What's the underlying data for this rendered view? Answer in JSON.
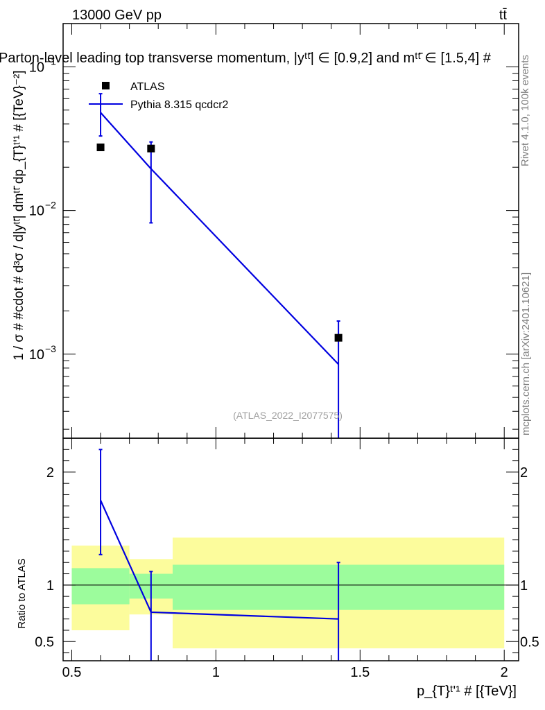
{
  "header": {
    "energy": "13000 GeV pp",
    "process": "tt̄"
  },
  "plot": {
    "title": "Parton-level leading top transverse momentum, |y^{tt̄}| ∈ [0.9,2] and m^{tt̄} ∈ [1.5,4] #",
    "title_display": "Parton-level leading top transverse momentum, |yᵗᵗ̄| ∈ [0.9,2] and mᵗᵗ̄ ∈ [1.5,4] #",
    "ylabel": "1 / σ # #cdot # d³σ / d|yᵗᵗ̄| dmᵗᵗ̄ dp_{T}ᵗ'¹ # [{TeV}⁻²]",
    "ratio_ylabel": "Ratio to ATLAS",
    "xlabel": "p_{T}ᵗ'¹ # [{TeV}]",
    "analysis_tag": "(ATLAS_2022_I2077575)",
    "side_label_top": "Rivet 4.1.0,  100k events",
    "side_label_bottom": "mcplots.cern.ch [arXiv:2401.10621]"
  },
  "chart_data": {
    "type": "line",
    "xlim": [
      0.47,
      2.05
    ],
    "ylim": [
      0.00026,
      0.2
    ],
    "ylog": true,
    "ratio_ylim": [
      0.33,
      2.3
    ],
    "x_ticks": [
      "0.5",
      "1",
      "1.5",
      "2"
    ],
    "x_tick_values": [
      0.5,
      1,
      1.5,
      2
    ],
    "y_ticks": [
      {
        "value": 0.1,
        "base": "10",
        "exp": "−1"
      },
      {
        "value": 0.01,
        "base": "10",
        "exp": "−2"
      },
      {
        "value": 0.001,
        "base": "10",
        "exp": "−3"
      }
    ],
    "ratio_ticks": [
      {
        "value": 0.5,
        "label": "0.5"
      },
      {
        "value": 1,
        "label": "1"
      },
      {
        "value": 2,
        "label": "2"
      }
    ],
    "bin_edges": [
      0.5,
      0.7,
      0.85,
      2.0
    ],
    "series": [
      {
        "name": "ATLAS",
        "kind": "data",
        "color": "#000000",
        "x": [
          0.6,
          0.775,
          1.425
        ],
        "y": [
          0.0275,
          0.027,
          0.0013
        ]
      },
      {
        "name": "Pythia 8.315 qcdcr2",
        "kind": "mc",
        "color": "#0000e0",
        "x": [
          0.6,
          0.775,
          1.425
        ],
        "y": [
          0.048,
          0.0195,
          0.00085
        ],
        "err_up": [
          0.065,
          0.03,
          0.0017
        ],
        "err_down": [
          0.033,
          0.0082,
          0.0001
        ]
      }
    ],
    "ratio": {
      "mc": [
        1.75,
        0.76,
        0.7
      ],
      "mc_err_up": [
        2.2,
        1.12,
        1.2
      ],
      "mc_err_down": [
        1.27,
        0.2,
        0.2
      ],
      "band_inner": [
        [
          0.83,
          1.15
        ],
        [
          0.88,
          1.1
        ],
        [
          0.78,
          1.18
        ]
      ],
      "band_outer": [
        [
          0.6,
          1.35
        ],
        [
          0.74,
          1.23
        ],
        [
          0.44,
          1.42
        ]
      ]
    },
    "colors": {
      "band_inner": "#9cfc9c",
      "band_outer": "#fcfc9c",
      "mc": "#0000e0",
      "data": "#000000"
    },
    "legend": {
      "position": "top-left"
    }
  }
}
